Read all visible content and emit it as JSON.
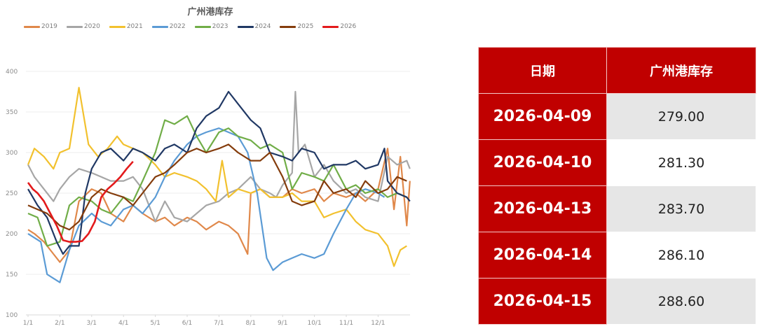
{
  "chart_data": {
    "type": "line",
    "title": "广州港库存",
    "xlabel": "",
    "ylabel": "",
    "ylim": [
      100,
      400
    ],
    "yticks": [
      100,
      150,
      200,
      250,
      300,
      350,
      400
    ],
    "xticks": [
      "1/1",
      "2/1",
      "3/1",
      "4/1",
      "5/1",
      "6/1",
      "7/1",
      "8/1",
      "9/1",
      "10/1",
      "11/1",
      "12/1"
    ],
    "grid": true,
    "legend_position": "top",
    "x_note": "x is fractional month index: 0 = 1/1, 11 = 12/1, 12 = year end",
    "series": [
      {
        "name": "2019",
        "color": "#e0884a",
        "x": [
          0,
          0.2,
          0.5,
          0.8,
          1.0,
          1.3,
          1.6,
          2.0,
          2.3,
          2.6,
          3.0,
          3.3,
          3.6,
          4.0,
          4.3,
          4.6,
          5.0,
          5.3,
          5.6,
          6.0,
          6.3,
          6.6,
          6.9,
          7.0,
          7.3,
          7.6,
          8.0,
          8.3,
          8.6,
          9.0,
          9.3,
          9.6,
          10.0,
          10.3,
          10.6,
          11.0,
          11.3,
          11.5,
          11.7,
          11.9,
          12.0
        ],
        "y": [
          205,
          200,
          190,
          175,
          165,
          180,
          240,
          255,
          250,
          225,
          215,
          235,
          225,
          215,
          220,
          210,
          220,
          215,
          205,
          215,
          210,
          200,
          175,
          250,
          255,
          245,
          245,
          255,
          250,
          255,
          240,
          250,
          245,
          250,
          240,
          255,
          305,
          230,
          295,
          210,
          265
        ]
      },
      {
        "name": "2020",
        "color": "#a6a6a6",
        "x": [
          0,
          0.2,
          0.5,
          0.8,
          1.0,
          1.3,
          1.6,
          2.0,
          2.3,
          2.6,
          3.0,
          3.3,
          3.6,
          4.0,
          4.3,
          4.6,
          5.0,
          5.3,
          5.6,
          6.0,
          6.3,
          6.6,
          7.0,
          7.3,
          7.6,
          7.8,
          8.0,
          8.3,
          8.4,
          8.5,
          8.7,
          9.0,
          9.3,
          9.6,
          10.0,
          10.3,
          10.6,
          11.0,
          11.3,
          11.6,
          11.9,
          12.0
        ],
        "y": [
          285,
          270,
          255,
          240,
          255,
          270,
          280,
          275,
          270,
          265,
          265,
          270,
          255,
          215,
          240,
          220,
          215,
          225,
          235,
          240,
          250,
          255,
          270,
          255,
          250,
          245,
          260,
          275,
          375,
          300,
          310,
          270,
          285,
          265,
          250,
          255,
          245,
          240,
          295,
          285,
          290,
          280
        ]
      },
      {
        "name": "2021",
        "color": "#f2c12e",
        "x": [
          0,
          0.2,
          0.5,
          0.8,
          1.0,
          1.3,
          1.6,
          1.9,
          2.2,
          2.5,
          2.8,
          3.0,
          3.3,
          3.6,
          4.0,
          4.3,
          4.6,
          5.0,
          5.3,
          5.6,
          5.9,
          6.1,
          6.3,
          6.6,
          7.0,
          7.3,
          7.6,
          8.0,
          8.3,
          8.6,
          9.0,
          9.3,
          9.6,
          10.0,
          10.3,
          10.6,
          11.0,
          11.3,
          11.5,
          11.7,
          11.9
        ],
        "y": [
          285,
          305,
          295,
          280,
          300,
          305,
          380,
          310,
          295,
          305,
          320,
          310,
          305,
          300,
          285,
          270,
          275,
          270,
          265,
          255,
          240,
          290,
          245,
          255,
          250,
          255,
          245,
          245,
          250,
          240,
          240,
          220,
          225,
          230,
          215,
          205,
          200,
          185,
          160,
          180,
          185
        ]
      },
      {
        "name": "2022",
        "color": "#5b9bd5",
        "x": [
          0,
          0.2,
          0.4,
          0.6,
          0.8,
          1.0,
          1.3,
          1.6,
          2.0,
          2.3,
          2.6,
          3.0,
          3.3,
          3.6,
          4.0,
          4.3,
          4.6,
          5.0,
          5.3,
          5.6,
          6.0,
          6.3,
          6.6,
          6.9,
          7.2,
          7.5,
          7.7,
          8.0,
          8.3,
          8.6,
          9.0,
          9.3,
          9.6,
          10.0,
          10.3,
          10.6,
          11.0,
          11.2
        ],
        "y": [
          200,
          195,
          190,
          150,
          145,
          140,
          180,
          210,
          225,
          215,
          210,
          230,
          235,
          225,
          245,
          270,
          290,
          310,
          320,
          325,
          330,
          325,
          320,
          300,
          250,
          170,
          155,
          165,
          170,
          175,
          170,
          175,
          200,
          230,
          250,
          255,
          250,
          245
        ]
      },
      {
        "name": "2023",
        "color": "#70ad47",
        "x": [
          0,
          0.3,
          0.6,
          1.0,
          1.3,
          1.6,
          2.0,
          2.3,
          2.6,
          3.0,
          3.3,
          3.6,
          4.0,
          4.3,
          4.6,
          5.0,
          5.3,
          5.6,
          6.0,
          6.3,
          6.6,
          7.0,
          7.3,
          7.6,
          8.0,
          8.3,
          8.6,
          9.0,
          9.3,
          9.6,
          10.0,
          10.3,
          10.6,
          11.0,
          11.3,
          11.6,
          11.9
        ],
        "y": [
          225,
          220,
          185,
          190,
          235,
          245,
          240,
          230,
          225,
          245,
          240,
          265,
          300,
          340,
          335,
          345,
          320,
          300,
          325,
          330,
          320,
          315,
          305,
          310,
          300,
          255,
          275,
          270,
          265,
          285,
          255,
          260,
          250,
          255,
          245,
          250,
          245
        ]
      },
      {
        "name": "2024",
        "color": "#203864",
        "x": [
          0,
          0.3,
          0.6,
          0.9,
          1.1,
          1.3,
          1.6,
          1.8,
          2.0,
          2.3,
          2.6,
          3.0,
          3.3,
          3.6,
          4.0,
          4.3,
          4.6,
          5.0,
          5.3,
          5.6,
          6.0,
          6.3,
          6.6,
          7.0,
          7.3,
          7.6,
          8.0,
          8.3,
          8.6,
          9.0,
          9.3,
          9.6,
          10.0,
          10.3,
          10.6,
          11.0,
          11.2,
          11.3,
          11.6,
          11.9,
          12.0
        ],
        "y": [
          255,
          235,
          220,
          190,
          175,
          185,
          185,
          250,
          280,
          300,
          305,
          290,
          305,
          300,
          290,
          305,
          310,
          300,
          330,
          345,
          355,
          375,
          360,
          340,
          330,
          300,
          295,
          290,
          305,
          300,
          280,
          285,
          285,
          290,
          280,
          285,
          305,
          265,
          250,
          245,
          240
        ]
      },
      {
        "name": "2025",
        "color": "#843c0c",
        "x": [
          0,
          0.3,
          0.6,
          1.0,
          1.3,
          1.6,
          2.0,
          2.3,
          2.6,
          3.0,
          3.3,
          3.6,
          4.0,
          4.3,
          4.6,
          5.0,
          5.3,
          5.6,
          6.0,
          6.3,
          6.6,
          7.0,
          7.3,
          7.6,
          8.0,
          8.3,
          8.6,
          9.0,
          9.3,
          9.6,
          10.0,
          10.3,
          10.6,
          11.0,
          11.3,
          11.6,
          11.9
        ],
        "y": [
          235,
          230,
          225,
          210,
          205,
          215,
          245,
          255,
          250,
          245,
          235,
          250,
          270,
          275,
          285,
          300,
          305,
          300,
          305,
          310,
          300,
          290,
          290,
          300,
          270,
          240,
          235,
          240,
          265,
          250,
          255,
          245,
          265,
          250,
          255,
          270,
          265
        ]
      },
      {
        "name": "2026",
        "color": "#e31a1c",
        "x": [
          0,
          0.15,
          0.3,
          0.5,
          0.7,
          0.9,
          1.1,
          1.3,
          1.5,
          1.7,
          1.9,
          2.1,
          2.3,
          2.5,
          2.7,
          2.9,
          3.1,
          3.3
        ],
        "y": [
          263,
          255,
          250,
          240,
          225,
          210,
          192,
          190,
          190,
          191,
          200,
          215,
          245,
          255,
          262,
          270,
          280,
          289
        ]
      }
    ]
  },
  "chart": {
    "title": "广州港库存",
    "legend": [
      {
        "label": "2019",
        "color": "#e0884a"
      },
      {
        "label": "2020",
        "color": "#a6a6a6"
      },
      {
        "label": "2021",
        "color": "#f2c12e"
      },
      {
        "label": "2022",
        "color": "#5b9bd5"
      },
      {
        "label": "2023",
        "color": "#70ad47"
      },
      {
        "label": "2024",
        "color": "#203864"
      },
      {
        "label": "2025",
        "color": "#843c0c"
      },
      {
        "label": "2026",
        "color": "#e31a1c"
      }
    ],
    "yticks": [
      "400",
      "350",
      "300",
      "250",
      "200",
      "150",
      "100"
    ],
    "xticks": [
      "1/1",
      "2/1",
      "3/1",
      "4/1",
      "5/1",
      "6/1",
      "7/1",
      "8/1",
      "9/1",
      "10/1",
      "11/1",
      "12/1"
    ]
  },
  "table": {
    "headers": [
      "日期",
      "广州港库存"
    ],
    "rows": [
      {
        "date": "2026-04-09",
        "value": "279.00"
      },
      {
        "date": "2026-04-10",
        "value": "281.30"
      },
      {
        "date": "2026-04-13",
        "value": "283.70"
      },
      {
        "date": "2026-04-14",
        "value": "286.10"
      },
      {
        "date": "2026-04-15",
        "value": "288.60"
      }
    ],
    "header_color": "#c00000",
    "shade_color": "#e6e6e6"
  }
}
